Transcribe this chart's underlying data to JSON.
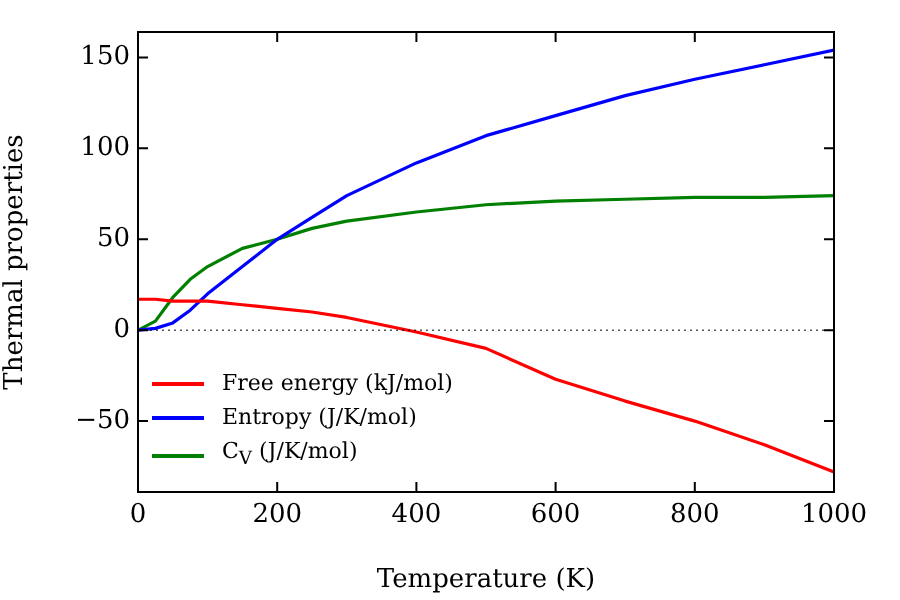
{
  "chart_data": {
    "type": "line",
    "xlabel": "Temperature (K)",
    "ylabel": "Thermal properties",
    "x": [
      0,
      25,
      50,
      75,
      100,
      150,
      200,
      250,
      300,
      400,
      500,
      600,
      700,
      800,
      900,
      1000
    ],
    "series": [
      {
        "name": "Free energy (kJ/mol)",
        "color": "#ff0000",
        "values": [
          17,
          17,
          16,
          16,
          16,
          14,
          12,
          10,
          7,
          -1,
          -10,
          -27,
          -39,
          -50,
          -63,
          -78
        ]
      },
      {
        "name": "Entropy (J/K/mol)",
        "color": "#0000ff",
        "values": [
          0,
          1,
          4,
          11,
          20,
          35,
          50,
          62,
          74,
          92,
          107,
          118,
          129,
          138,
          146,
          154
        ]
      },
      {
        "name": "C$_{V}$ (J/K/mol)",
        "color": "#008000",
        "values": [
          0,
          5,
          18,
          28,
          35,
          45,
          50,
          56,
          60,
          65,
          69,
          71,
          72,
          73,
          73,
          74
        ]
      }
    ],
    "xlim": [
      0,
      1000
    ],
    "xticks": [
      0,
      200,
      400,
      600,
      800,
      1000
    ],
    "ylim": [
      -89,
      164
    ],
    "yticks": [
      -50,
      0,
      50,
      100,
      150
    ],
    "ref_lines": [
      {
        "axis": "y",
        "value": 0,
        "color": "#000000",
        "line_style": "dotted"
      }
    ],
    "grid": false,
    "legend": "bottom left",
    "marker": "none",
    "line_style": "solid"
  }
}
